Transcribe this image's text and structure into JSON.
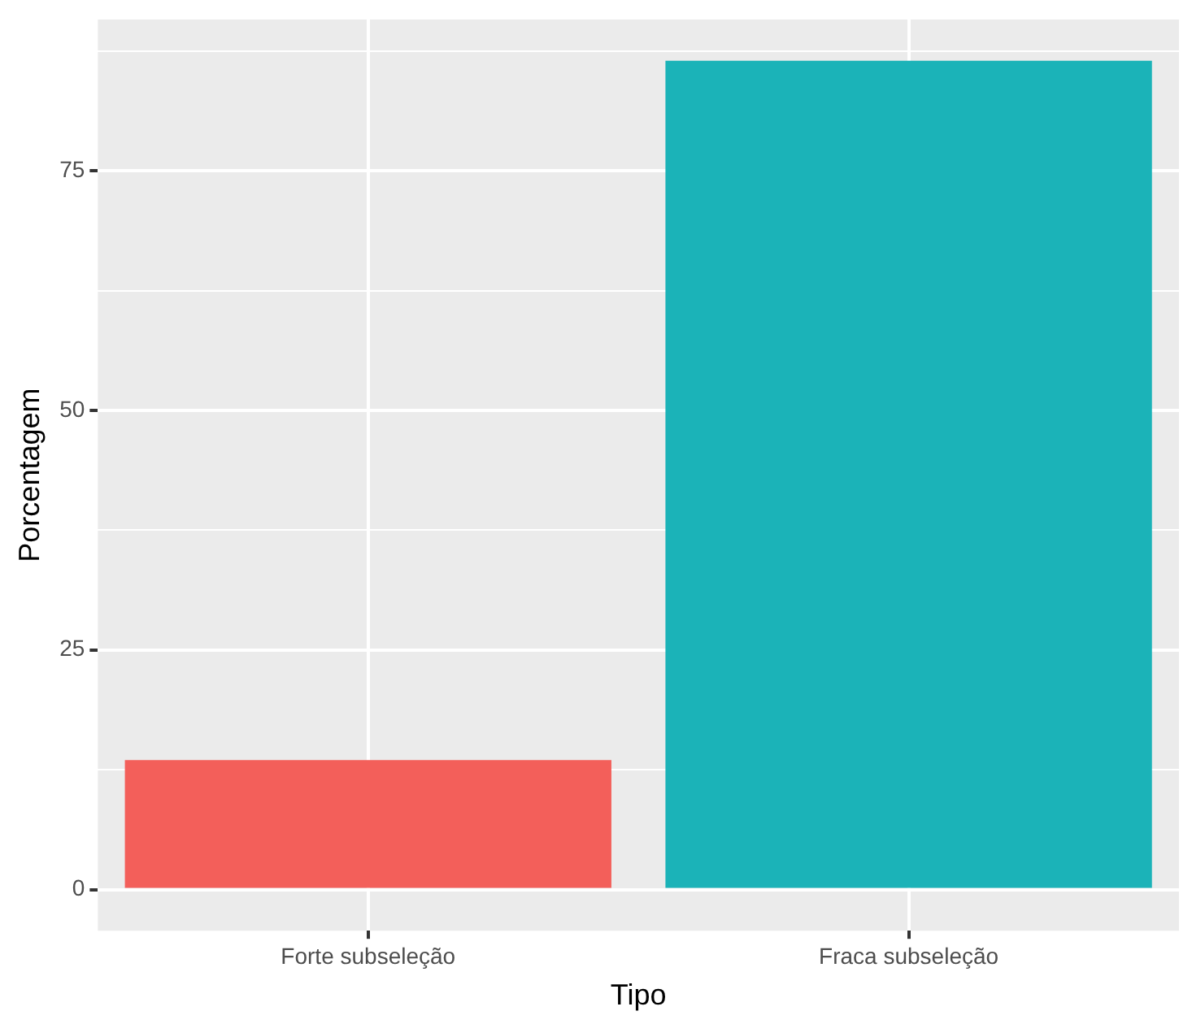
{
  "chart_data": {
    "type": "bar",
    "xlabel": "Tipo",
    "ylabel": "Porcentagem",
    "categories": [
      "Forte subseleção",
      "Fraca subseleção"
    ],
    "values": [
      13.5,
      86.5
    ],
    "colors": [
      "#f35f5a",
      "#1bb3b8"
    ],
    "ylim": [
      -4.3,
      90.8
    ],
    "yticks": [
      0,
      {
        "value": 12.5,
        "label": null
      },
      25,
      {
        "value": 37.5,
        "label": null
      },
      50,
      {
        "value": 62.5,
        "label": null
      },
      75,
      {
        "value": 87.5,
        "label": null
      }
    ],
    "grid": true,
    "legend": false
  }
}
